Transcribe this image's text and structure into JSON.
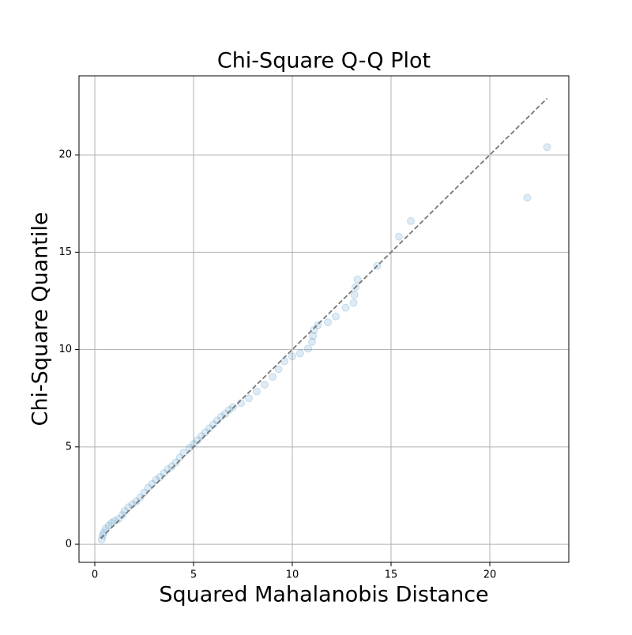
{
  "chart_data": {
    "type": "scatter",
    "title": "Chi-Square Q-Q Plot",
    "x_label": "Squared Mahalanobis Distance",
    "y_label": "Chi-Square Quantile",
    "xlim": [
      -0.8,
      24
    ],
    "ylim": [
      -0.93,
      24.06
    ],
    "xticks": [
      0,
      5,
      10,
      15,
      20
    ],
    "yticks": [
      0,
      5,
      10,
      15,
      20
    ],
    "grid": true,
    "color": "#1f77b4",
    "x": [
      0.35,
      0.4,
      0.45,
      0.55,
      0.7,
      0.85,
      1.0,
      1.2,
      1.4,
      1.5,
      1.7,
      1.9,
      2.1,
      2.3,
      2.5,
      2.7,
      2.9,
      3.1,
      3.3,
      3.5,
      3.7,
      3.9,
      4.1,
      4.3,
      4.5,
      4.8,
      5.0,
      5.2,
      5.4,
      5.6,
      5.8,
      6.0,
      6.2,
      6.4,
      6.6,
      6.8,
      7.0,
      7.4,
      7.8,
      8.2,
      8.6,
      9.0,
      9.3,
      9.6,
      10.0,
      10.4,
      10.8,
      11.0,
      11.05,
      11.1,
      11.3,
      11.8,
      12.2,
      12.7,
      13.1,
      13.15,
      13.2,
      13.3,
      14.3,
      15.4,
      16.0,
      21.9,
      22.9
    ],
    "y": [
      0.25,
      0.45,
      0.6,
      0.8,
      0.95,
      1.1,
      1.2,
      1.3,
      1.5,
      1.7,
      1.9,
      2.05,
      2.2,
      2.4,
      2.65,
      2.9,
      3.1,
      3.3,
      3.45,
      3.65,
      3.85,
      4.0,
      4.2,
      4.45,
      4.7,
      4.95,
      5.15,
      5.35,
      5.55,
      5.75,
      5.95,
      6.15,
      6.35,
      6.55,
      6.7,
      6.9,
      7.05,
      7.25,
      7.5,
      7.85,
      8.2,
      8.6,
      9.0,
      9.4,
      9.65,
      9.8,
      10.05,
      10.4,
      10.7,
      11.0,
      11.25,
      11.4,
      11.7,
      12.15,
      12.4,
      12.8,
      13.2,
      13.6,
      14.3,
      15.8,
      16.6,
      17.8,
      20.4
    ],
    "reference_line": {
      "x": [
        0.3,
        22.9
      ],
      "y": [
        0.3,
        22.9
      ],
      "color": "#777777"
    }
  }
}
